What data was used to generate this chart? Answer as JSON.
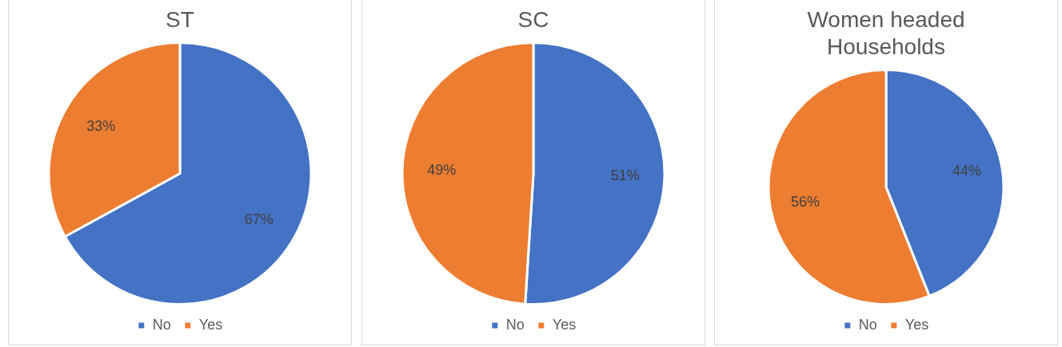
{
  "chart_data": [
    {
      "type": "pie",
      "title": "ST",
      "categories": [
        "No",
        "Yes"
      ],
      "values": [
        67,
        33
      ],
      "value_labels": [
        "67%",
        "33%"
      ],
      "colors": [
        "#4472c4",
        "#ed7d31"
      ],
      "legend": "bottom"
    },
    {
      "type": "pie",
      "title": "SC",
      "categories": [
        "No",
        "Yes"
      ],
      "values": [
        51,
        49
      ],
      "value_labels": [
        "51%",
        "49%"
      ],
      "colors": [
        "#4472c4",
        "#ed7d31"
      ],
      "legend": "bottom"
    },
    {
      "type": "pie",
      "title": "Women headed Households",
      "categories": [
        "No",
        "Yes"
      ],
      "values": [
        44,
        56
      ],
      "value_labels": [
        "44%",
        "56%"
      ],
      "colors": [
        "#4472c4",
        "#ed7d31"
      ],
      "legend": "bottom"
    }
  ]
}
